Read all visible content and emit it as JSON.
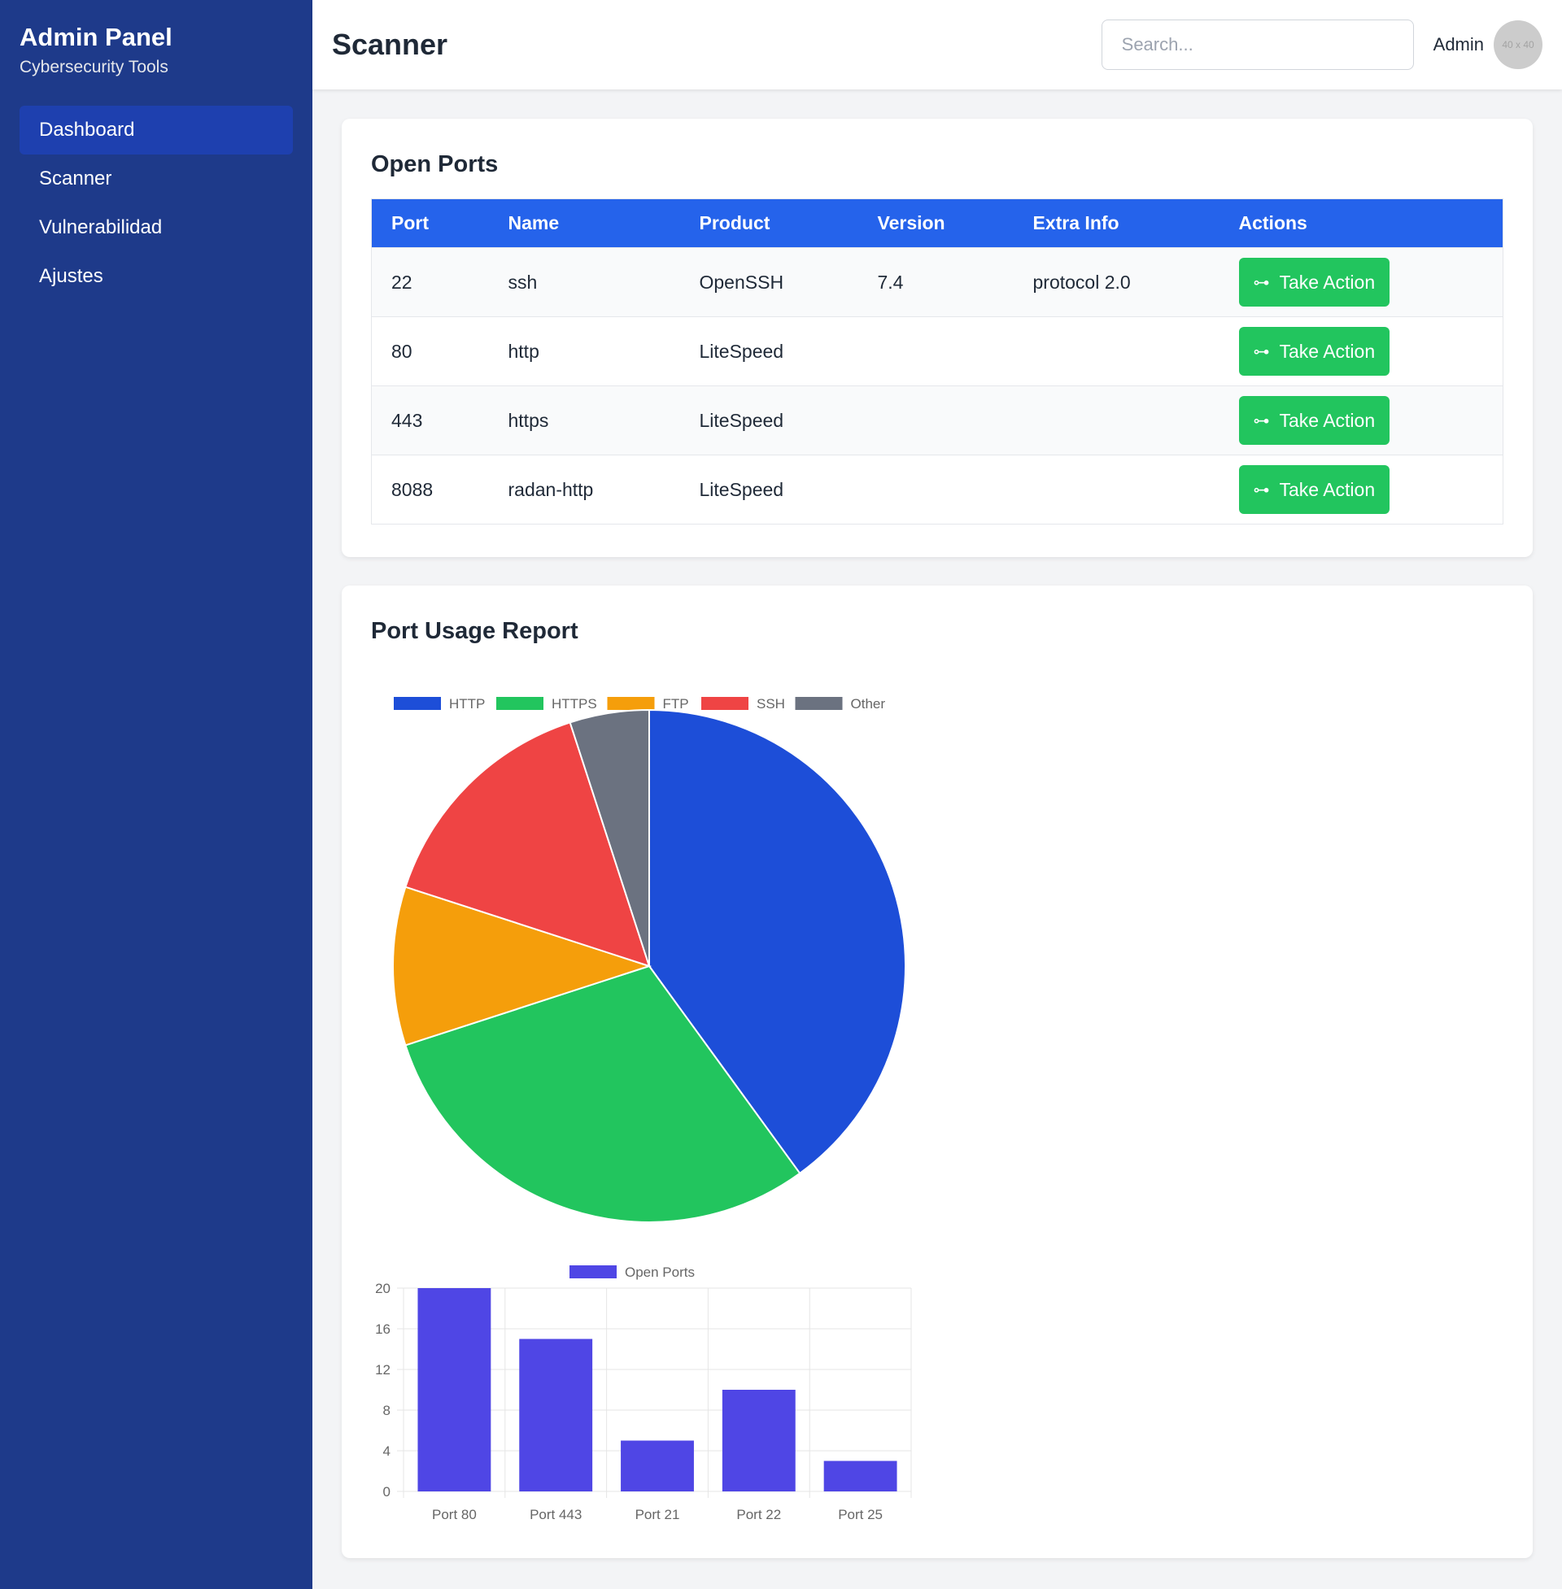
{
  "sidebar": {
    "title": "Admin Panel",
    "subtitle": "Cybersecurity Tools",
    "items": [
      {
        "label": "Dashboard",
        "active": true
      },
      {
        "label": "Scanner",
        "active": false
      },
      {
        "label": "Vulnerabilidad",
        "active": false
      },
      {
        "label": "Ajustes",
        "active": false
      }
    ]
  },
  "header": {
    "title": "Scanner",
    "search_placeholder": "Search...",
    "user_name": "Admin",
    "avatar_text": "40 x 40"
  },
  "ports": {
    "title": "Open Ports",
    "columns": [
      "Port",
      "Name",
      "Product",
      "Version",
      "Extra Info",
      "Actions"
    ],
    "rows": [
      {
        "port": "22",
        "name": "ssh",
        "product": "OpenSSH",
        "version": "7.4",
        "extra": "protocol 2.0",
        "action": "Take Action"
      },
      {
        "port": "80",
        "name": "http",
        "product": "LiteSpeed",
        "version": "",
        "extra": "",
        "action": "Take Action"
      },
      {
        "port": "443",
        "name": "https",
        "product": "LiteSpeed",
        "version": "",
        "extra": "",
        "action": "Take Action"
      },
      {
        "port": "8088",
        "name": "radan-http",
        "product": "LiteSpeed",
        "version": "",
        "extra": "",
        "action": "Take Action"
      }
    ],
    "action_icon": "arrows-left-right-icon"
  },
  "report": {
    "title": "Port Usage Report"
  },
  "chart_data": [
    {
      "type": "pie",
      "categories": [
        "HTTP",
        "HTTPS",
        "FTP",
        "SSH",
        "Other"
      ],
      "values": [
        40,
        30,
        10,
        15,
        5
      ],
      "colors": [
        "#1d4ed8",
        "#22c55e",
        "#f59e0b",
        "#ef4444",
        "#6b7280"
      ],
      "legend": "top"
    },
    {
      "type": "bar",
      "categories": [
        "Port 80",
        "Port 443",
        "Port 21",
        "Port 22",
        "Port 25"
      ],
      "series": [
        {
          "name": "Open Ports",
          "values": [
            20,
            15,
            5,
            10,
            3
          ]
        }
      ],
      "ylim": [
        0,
        20
      ],
      "yticks": [
        0,
        4,
        8,
        12,
        16,
        20
      ],
      "color": "#4f46e5",
      "grid": true,
      "legend": "top"
    }
  ]
}
